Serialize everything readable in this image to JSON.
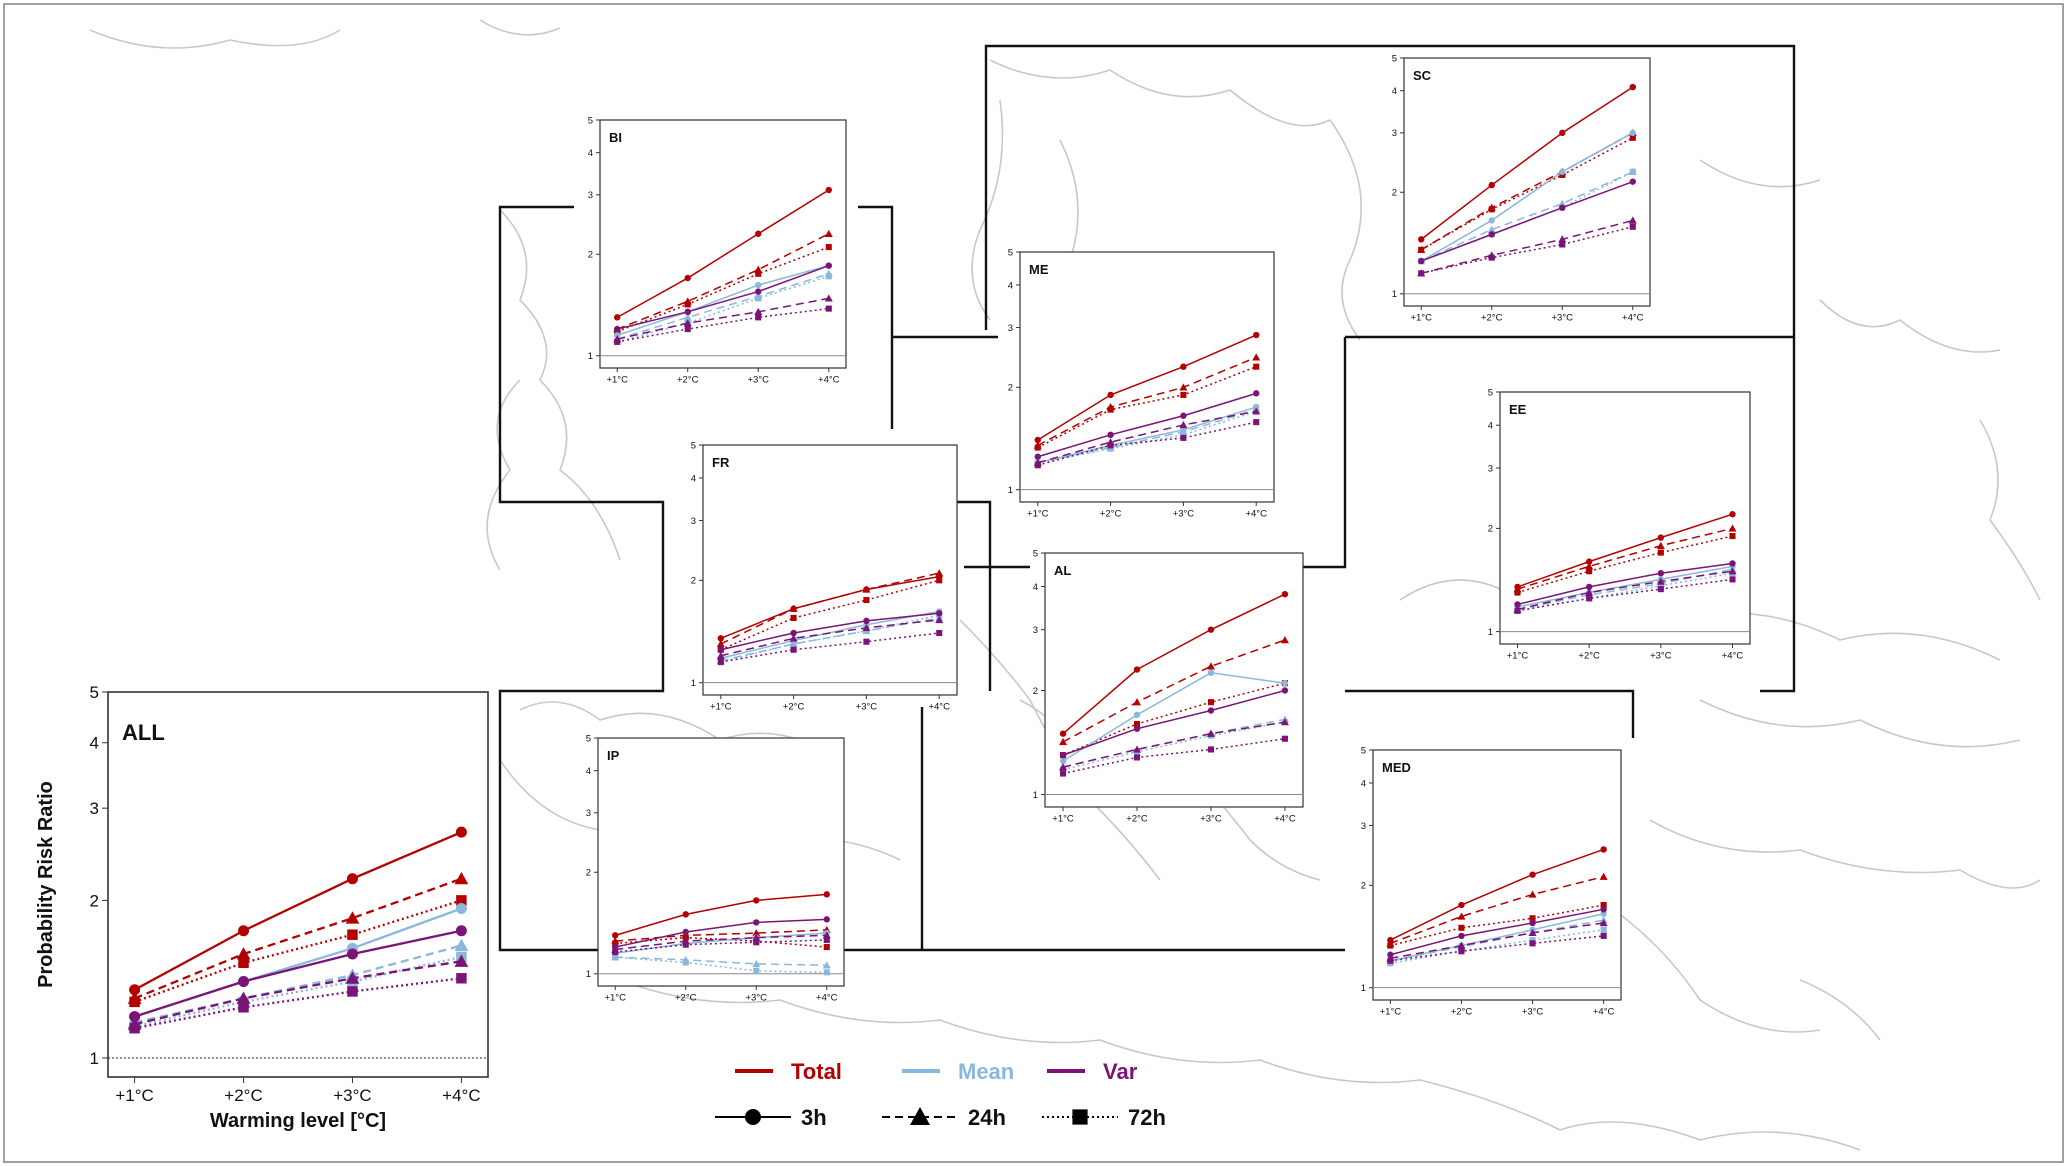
{
  "chart_data": {
    "type": "line",
    "scale": "log",
    "categories": [
      "+1°C",
      "+2°C",
      "+3°C",
      "+4°C"
    ],
    "ylim": [
      0.92,
      5
    ],
    "yticks": [
      1,
      2,
      3,
      4,
      5
    ],
    "main_ylabel": "Probability Risk Ratio",
    "main_xlabel": "Warming level [°C]",
    "reference_line": 1,
    "colors": {
      "Total": "#b30000",
      "Mean": "#8ab8dc",
      "Var": "#7a1478"
    },
    "legend": {
      "components": [
        "Total",
        "Mean",
        "Var"
      ],
      "durations": [
        "3h",
        "24h",
        "72h"
      ]
    },
    "panels": [
      {
        "id": "ALL",
        "title": "ALL",
        "series": [
          {
            "component": "Total",
            "duration": "3h",
            "values": [
              1.35,
              1.75,
              2.2,
              2.7
            ]
          },
          {
            "component": "Total",
            "duration": "24h",
            "values": [
              1.3,
              1.58,
              1.85,
              2.2
            ]
          },
          {
            "component": "Total",
            "duration": "72h",
            "values": [
              1.28,
              1.52,
              1.72,
              2.0
            ]
          },
          {
            "component": "Mean",
            "duration": "3h",
            "values": [
              1.2,
              1.4,
              1.62,
              1.93
            ]
          },
          {
            "component": "Mean",
            "duration": "24h",
            "values": [
              1.17,
              1.3,
              1.44,
              1.64
            ]
          },
          {
            "component": "Mean",
            "duration": "72h",
            "values": [
              1.15,
              1.28,
              1.4,
              1.56
            ]
          },
          {
            "component": "Var",
            "duration": "3h",
            "values": [
              1.2,
              1.4,
              1.58,
              1.75
            ]
          },
          {
            "component": "Var",
            "duration": "24h",
            "values": [
              1.16,
              1.3,
              1.42,
              1.53
            ]
          },
          {
            "component": "Var",
            "duration": "72h",
            "values": [
              1.14,
              1.25,
              1.34,
              1.42
            ]
          }
        ]
      },
      {
        "id": "BI",
        "title": "BI",
        "series": [
          {
            "component": "Total",
            "duration": "3h",
            "values": [
              1.3,
              1.7,
              2.3,
              3.1
            ]
          },
          {
            "component": "Total",
            "duration": "24h",
            "values": [
              1.2,
              1.45,
              1.8,
              2.3
            ]
          },
          {
            "component": "Total",
            "duration": "72h",
            "values": [
              1.18,
              1.42,
              1.75,
              2.1
            ]
          },
          {
            "component": "Mean",
            "duration": "3h",
            "values": [
              1.15,
              1.35,
              1.62,
              1.85
            ]
          },
          {
            "component": "Mean",
            "duration": "24h",
            "values": [
              1.12,
              1.3,
              1.5,
              1.75
            ]
          },
          {
            "component": "Mean",
            "duration": "72h",
            "values": [
              1.1,
              1.25,
              1.48,
              1.72
            ]
          },
          {
            "component": "Var",
            "duration": "3h",
            "values": [
              1.2,
              1.35,
              1.55,
              1.85
            ]
          },
          {
            "component": "Var",
            "duration": "24h",
            "values": [
              1.12,
              1.25,
              1.35,
              1.48
            ]
          },
          {
            "component": "Var",
            "duration": "72h",
            "values": [
              1.1,
              1.2,
              1.3,
              1.38
            ]
          }
        ]
      },
      {
        "id": "SC",
        "title": "SC",
        "series": [
          {
            "component": "Total",
            "duration": "3h",
            "values": [
              1.45,
              2.1,
              3.0,
              4.1
            ]
          },
          {
            "component": "Total",
            "duration": "24h",
            "values": [
              1.35,
              1.8,
              2.3,
              3.0
            ]
          },
          {
            "component": "Total",
            "duration": "72h",
            "values": [
              1.35,
              1.78,
              2.25,
              2.9
            ]
          },
          {
            "component": "Mean",
            "duration": "3h",
            "values": [
              1.25,
              1.65,
              2.3,
              3.0
            ]
          },
          {
            "component": "Mean",
            "duration": "24h",
            "values": [
              1.25,
              1.55,
              1.85,
              2.3
            ]
          },
          {
            "component": "Mean",
            "duration": "72h",
            "values": [
              1.25,
              1.5,
              1.8,
              2.3
            ]
          },
          {
            "component": "Var",
            "duration": "3h",
            "values": [
              1.25,
              1.5,
              1.8,
              2.15
            ]
          },
          {
            "component": "Var",
            "duration": "24h",
            "values": [
              1.15,
              1.3,
              1.45,
              1.65
            ]
          },
          {
            "component": "Var",
            "duration": "72h",
            "values": [
              1.15,
              1.28,
              1.4,
              1.58
            ]
          }
        ]
      },
      {
        "id": "ME",
        "title": "ME",
        "series": [
          {
            "component": "Total",
            "duration": "3h",
            "values": [
              1.4,
              1.9,
              2.3,
              2.85
            ]
          },
          {
            "component": "Total",
            "duration": "24h",
            "values": [
              1.35,
              1.75,
              2.0,
              2.45
            ]
          },
          {
            "component": "Total",
            "duration": "72h",
            "values": [
              1.33,
              1.72,
              1.9,
              2.3
            ]
          },
          {
            "component": "Mean",
            "duration": "3h",
            "values": [
              1.2,
              1.35,
              1.5,
              1.75
            ]
          },
          {
            "component": "Mean",
            "duration": "24h",
            "values": [
              1.2,
              1.33,
              1.48,
              1.72
            ]
          },
          {
            "component": "Mean",
            "duration": "72h",
            "values": [
              1.2,
              1.32,
              1.45,
              1.7
            ]
          },
          {
            "component": "Var",
            "duration": "3h",
            "values": [
              1.25,
              1.45,
              1.65,
              1.92
            ]
          },
          {
            "component": "Var",
            "duration": "24h",
            "values": [
              1.2,
              1.38,
              1.55,
              1.7
            ]
          },
          {
            "component": "Var",
            "duration": "72h",
            "values": [
              1.18,
              1.35,
              1.42,
              1.58
            ]
          }
        ]
      },
      {
        "id": "FR",
        "title": "FR",
        "series": [
          {
            "component": "Total",
            "duration": "3h",
            "values": [
              1.35,
              1.65,
              1.88,
              2.05
            ]
          },
          {
            "component": "Total",
            "duration": "24h",
            "values": [
              1.3,
              1.65,
              1.88,
              2.1
            ]
          },
          {
            "component": "Total",
            "duration": "72h",
            "values": [
              1.25,
              1.55,
              1.75,
              2.0
            ]
          },
          {
            "component": "Mean",
            "duration": "3h",
            "values": [
              1.18,
              1.33,
              1.48,
              1.62
            ]
          },
          {
            "component": "Mean",
            "duration": "24h",
            "values": [
              1.16,
              1.3,
              1.42,
              1.55
            ]
          },
          {
            "component": "Mean",
            "duration": "72h",
            "values": [
              1.15,
              1.3,
              1.42,
              1.58
            ]
          },
          {
            "component": "Var",
            "duration": "3h",
            "values": [
              1.25,
              1.4,
              1.52,
              1.6
            ]
          },
          {
            "component": "Var",
            "duration": "24h",
            "values": [
              1.2,
              1.35,
              1.45,
              1.53
            ]
          },
          {
            "component": "Var",
            "duration": "72h",
            "values": [
              1.15,
              1.25,
              1.32,
              1.4
            ]
          }
        ]
      },
      {
        "id": "AL",
        "title": "AL",
        "series": [
          {
            "component": "Total",
            "duration": "3h",
            "values": [
              1.5,
              2.3,
              3.0,
              3.8
            ]
          },
          {
            "component": "Total",
            "duration": "24h",
            "values": [
              1.42,
              1.85,
              2.35,
              2.8
            ]
          },
          {
            "component": "Total",
            "duration": "72h",
            "values": [
              1.3,
              1.6,
              1.85,
              2.1
            ]
          },
          {
            "component": "Mean",
            "duration": "3h",
            "values": [
              1.25,
              1.7,
              2.25,
              2.1
            ]
          },
          {
            "component": "Mean",
            "duration": "24h",
            "values": [
              1.2,
              1.35,
              1.5,
              1.65
            ]
          },
          {
            "component": "Mean",
            "duration": "72h",
            "values": [
              1.18,
              1.33,
              1.48,
              1.62
            ]
          },
          {
            "component": "Var",
            "duration": "3h",
            "values": [
              1.3,
              1.55,
              1.75,
              2.0
            ]
          },
          {
            "component": "Var",
            "duration": "24h",
            "values": [
              1.2,
              1.35,
              1.5,
              1.62
            ]
          },
          {
            "component": "Var",
            "duration": "72h",
            "values": [
              1.15,
              1.28,
              1.35,
              1.45
            ]
          }
        ]
      },
      {
        "id": "EE",
        "title": "EE",
        "series": [
          {
            "component": "Total",
            "duration": "3h",
            "values": [
              1.35,
              1.6,
              1.88,
              2.2
            ]
          },
          {
            "component": "Total",
            "duration": "24h",
            "values": [
              1.33,
              1.55,
              1.78,
              2.0
            ]
          },
          {
            "component": "Total",
            "duration": "72h",
            "values": [
              1.3,
              1.5,
              1.7,
              1.9
            ]
          },
          {
            "component": "Mean",
            "duration": "3h",
            "values": [
              1.18,
              1.3,
              1.42,
              1.55
            ]
          },
          {
            "component": "Mean",
            "duration": "24h",
            "values": [
              1.16,
              1.28,
              1.38,
              1.52
            ]
          },
          {
            "component": "Mean",
            "duration": "72h",
            "values": [
              1.15,
              1.25,
              1.36,
              1.48
            ]
          },
          {
            "component": "Var",
            "duration": "3h",
            "values": [
              1.2,
              1.35,
              1.48,
              1.58
            ]
          },
          {
            "component": "Var",
            "duration": "24h",
            "values": [
              1.16,
              1.3,
              1.4,
              1.5
            ]
          },
          {
            "component": "Var",
            "duration": "72h",
            "values": [
              1.15,
              1.25,
              1.33,
              1.42
            ]
          }
        ]
      },
      {
        "id": "IP",
        "title": "IP",
        "series": [
          {
            "component": "Total",
            "duration": "3h",
            "values": [
              1.3,
              1.5,
              1.65,
              1.72
            ]
          },
          {
            "component": "Total",
            "duration": "24h",
            "values": [
              1.25,
              1.3,
              1.32,
              1.35
            ]
          },
          {
            "component": "Total",
            "duration": "72h",
            "values": [
              1.23,
              1.28,
              1.25,
              1.2
            ]
          },
          {
            "component": "Mean",
            "duration": "3h",
            "values": [
              1.15,
              1.23,
              1.28,
              1.32
            ]
          },
          {
            "component": "Mean",
            "duration": "24h",
            "values": [
              1.12,
              1.1,
              1.07,
              1.06
            ]
          },
          {
            "component": "Mean",
            "duration": "72h",
            "values": [
              1.12,
              1.08,
              1.02,
              1.01
            ]
          },
          {
            "component": "Var",
            "duration": "3h",
            "values": [
              1.2,
              1.33,
              1.42,
              1.45
            ]
          },
          {
            "component": "Var",
            "duration": "24h",
            "values": [
              1.18,
              1.25,
              1.28,
              1.3
            ]
          },
          {
            "component": "Var",
            "duration": "72h",
            "values": [
              1.16,
              1.22,
              1.24,
              1.26
            ]
          }
        ]
      },
      {
        "id": "MED",
        "title": "MED",
        "series": [
          {
            "component": "Total",
            "duration": "3h",
            "values": [
              1.38,
              1.75,
              2.15,
              2.55
            ]
          },
          {
            "component": "Total",
            "duration": "24h",
            "values": [
              1.35,
              1.62,
              1.88,
              2.12
            ]
          },
          {
            "component": "Total",
            "duration": "72h",
            "values": [
              1.33,
              1.5,
              1.6,
              1.75
            ]
          },
          {
            "component": "Mean",
            "duration": "3h",
            "values": [
              1.2,
              1.33,
              1.48,
              1.65
            ]
          },
          {
            "component": "Mean",
            "duration": "24h",
            "values": [
              1.2,
              1.32,
              1.45,
              1.58
            ]
          },
          {
            "component": "Mean",
            "duration": "72h",
            "values": [
              1.18,
              1.28,
              1.38,
              1.48
            ]
          },
          {
            "component": "Var",
            "duration": "3h",
            "values": [
              1.25,
              1.42,
              1.55,
              1.7
            ]
          },
          {
            "component": "Var",
            "duration": "24h",
            "values": [
              1.22,
              1.33,
              1.45,
              1.55
            ]
          },
          {
            "component": "Var",
            "duration": "72h",
            "values": [
              1.2,
              1.28,
              1.35,
              1.42
            ]
          }
        ]
      }
    ]
  }
}
